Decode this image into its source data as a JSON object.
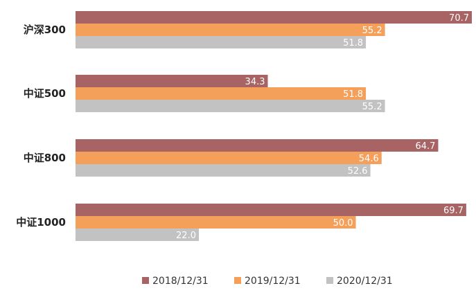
{
  "chart_data": {
    "type": "bar",
    "orientation": "horizontal",
    "categories": [
      "沪深300",
      "中证500",
      "中证800",
      "中证1000"
    ],
    "series": [
      {
        "name": "2018/12/31",
        "color": "#a86464",
        "values": [
          70.7,
          34.3,
          64.7,
          69.7
        ],
        "labels": [
          "70.7",
          "34.3",
          "64.7",
          "69.7"
        ]
      },
      {
        "name": "2019/12/31",
        "color": "#f5a05a",
        "values": [
          55.2,
          51.8,
          54.6,
          50.0
        ],
        "labels": [
          "55.2",
          "51.8",
          "54.6",
          "50.0"
        ]
      },
      {
        "name": "2020/12/31",
        "color": "#c2c2c2",
        "values": [
          51.8,
          55.2,
          52.6,
          22.0
        ],
        "labels": [
          "51.8",
          "55.2",
          "52.6",
          "22.0"
        ]
      }
    ],
    "xlim": [
      0,
      70.7
    ],
    "grid": false,
    "legend_position": "bottom"
  }
}
